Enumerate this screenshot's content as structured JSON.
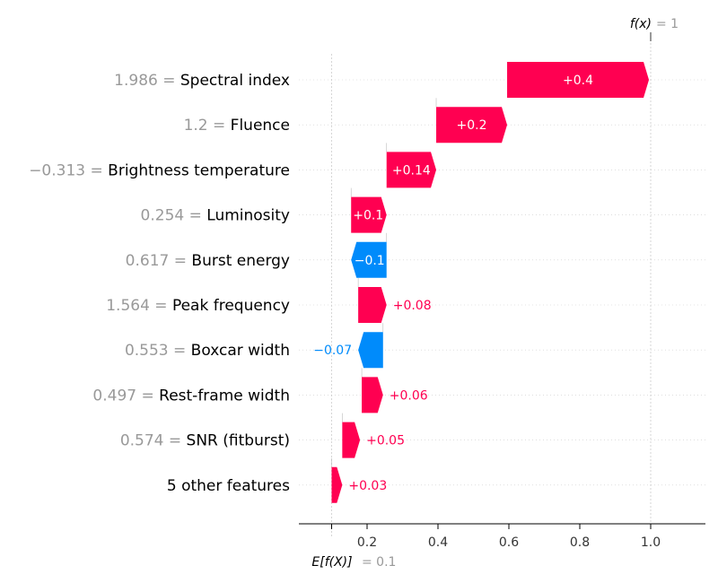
{
  "chart_data": {
    "type": "waterfall",
    "base_value": 0.1,
    "output_value": 1,
    "base_label_main": "E[f(X)]",
    "base_label_value": "= 0.1",
    "output_label_main": "f(x)",
    "output_label_value": "= 1",
    "xlim": [
      -0.1,
      1.15
    ],
    "xticks": [
      0.2,
      0.4,
      0.6,
      0.8,
      1.0
    ],
    "xtick_labels": [
      "0.2",
      "0.4",
      "0.6",
      "0.8",
      "1.0"
    ],
    "features": [
      {
        "value": "1.986",
        "name": "Spectral index",
        "contribution": 0.4,
        "label": "+0.4",
        "start": 0.595,
        "end": 0.995
      },
      {
        "value": "1.2",
        "name": "Fluence",
        "contribution": 0.2,
        "label": "+0.2",
        "start": 0.395,
        "end": 0.595
      },
      {
        "value": "−0.313",
        "name": "Brightness temperature",
        "contribution": 0.14,
        "label": "+0.14",
        "start": 0.255,
        "end": 0.395
      },
      {
        "value": "0.254",
        "name": "Luminosity",
        "contribution": 0.1,
        "label": "+0.1",
        "start": 0.155,
        "end": 0.255
      },
      {
        "value": "0.617",
        "name": "Burst energy",
        "contribution": -0.1,
        "label": "−0.1",
        "start": 0.255,
        "end": 0.155
      },
      {
        "value": "1.564",
        "name": "Peak frequency",
        "contribution": 0.08,
        "label": "+0.08",
        "start": 0.175,
        "end": 0.255
      },
      {
        "value": "0.553",
        "name": "Boxcar width",
        "contribution": -0.07,
        "label": "−0.07",
        "start": 0.245,
        "end": 0.175
      },
      {
        "value": "0.497",
        "name": "Rest-frame width",
        "contribution": 0.06,
        "label": "+0.06",
        "start": 0.185,
        "end": 0.245
      },
      {
        "value": "0.574",
        "name": "SNR (fitburst)",
        "contribution": 0.05,
        "label": "+0.05",
        "start": 0.13,
        "end": 0.18
      },
      {
        "value": "",
        "name": "5 other features",
        "contribution": 0.03,
        "label": "+0.03",
        "start": 0.1,
        "end": 0.13
      }
    ],
    "colors": {
      "positive": "#ff0051",
      "negative": "#008bfb",
      "value_text": "#999999",
      "axis": "#000000",
      "grid": "#cccccc"
    }
  }
}
